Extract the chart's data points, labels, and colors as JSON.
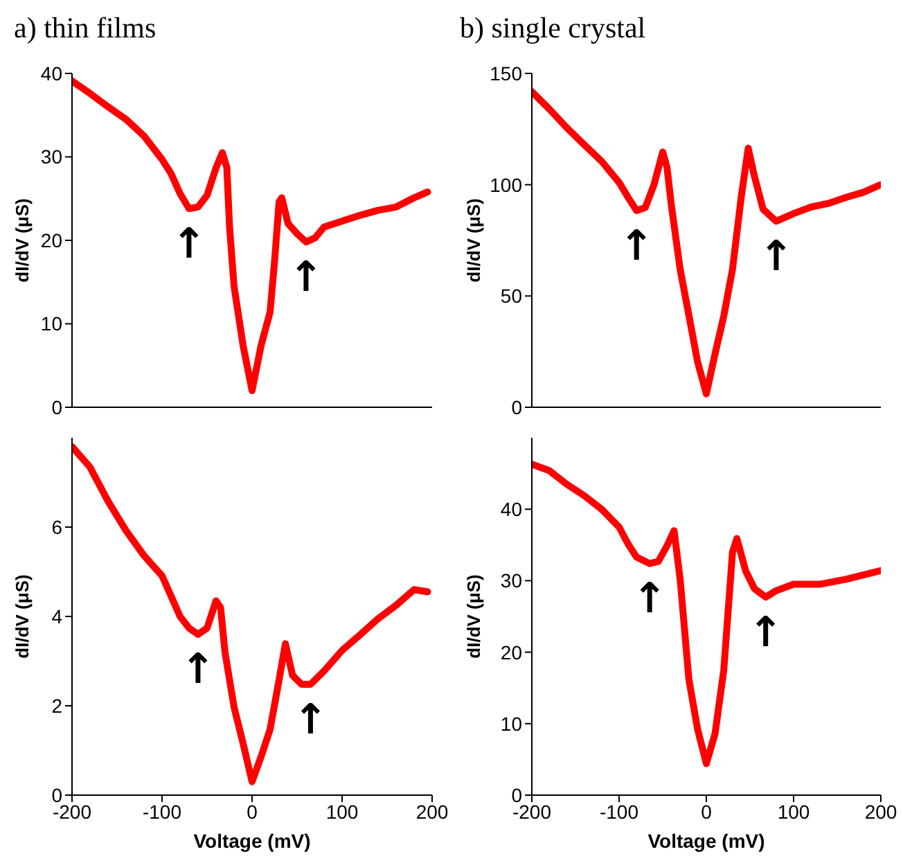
{
  "chart_data": [
    {
      "type": "line",
      "title": "a) thin films",
      "ylabel": "dI/dV (μS)",
      "xlim": [
        -200,
        200
      ],
      "xticks": [
        -200,
        -100,
        0,
        100,
        200
      ],
      "ylim": [
        0,
        40
      ],
      "yticks": [
        0,
        10,
        20,
        30,
        40
      ],
      "tick_labels": "y",
      "x": [
        -200,
        -180,
        -160,
        -140,
        -120,
        -100,
        -90,
        -80,
        -70,
        -60,
        -50,
        -40,
        -33,
        -28,
        -25,
        -20,
        -10,
        0,
        10,
        20,
        25,
        30,
        33,
        40,
        50,
        60,
        70,
        80,
        100,
        120,
        140,
        160,
        180,
        195
      ],
      "series": [
        {
          "color": "#ff0000",
          "values": [
            39.1,
            37.6,
            36,
            34.5,
            32.5,
            29.7,
            28,
            25.6,
            23.8,
            24,
            25.4,
            28.7,
            30.5,
            28.7,
            21.6,
            14.5,
            7.4,
            2.0,
            7.4,
            11.4,
            17.5,
            24.6,
            25.1,
            22,
            20.8,
            19.8,
            20.3,
            21.6,
            22.3,
            23,
            23.6,
            24,
            25.1,
            25.8
          ]
        }
      ],
      "annotations": [
        {
          "text": "↑",
          "x": -70,
          "y": 23.8
        },
        {
          "text": "↑",
          "x": 60,
          "y": 19.8
        }
      ]
    },
    {
      "type": "line",
      "title": "b) single crystal",
      "ylabel": "dI/dV (μS)",
      "xlim": [
        -200,
        200
      ],
      "xticks": [
        -200,
        -100,
        0,
        100,
        200
      ],
      "ylim": [
        0,
        150
      ],
      "yticks": [
        0,
        50,
        100,
        150
      ],
      "tick_labels": "y",
      "x": [
        -200,
        -180,
        -160,
        -140,
        -120,
        -100,
        -90,
        -80,
        -70,
        -60,
        -50,
        -45,
        -40,
        -30,
        -20,
        -10,
        0,
        10,
        20,
        30,
        40,
        48,
        55,
        65,
        80,
        100,
        120,
        140,
        160,
        180,
        200
      ],
      "series": [
        {
          "color": "#ff0000",
          "values": [
            141.8,
            134,
            125.6,
            118,
            110.5,
            101,
            94.5,
            88.4,
            89.7,
            100,
            114.7,
            107.6,
            90.5,
            62,
            41.3,
            20.4,
            6,
            24,
            41,
            62,
            94.5,
            116.4,
            104,
            89,
            83.6,
            87,
            90,
            91.6,
            94.3,
            96.6,
            100
          ]
        }
      ],
      "annotations": [
        {
          "text": "↑",
          "x": -80,
          "y": 88.4
        },
        {
          "text": "↑",
          "x": 80,
          "y": 83.6
        }
      ]
    },
    {
      "type": "line",
      "xlabel": "Voltage (mV)",
      "ylabel": "dI/dV (μS)",
      "xlim": [
        -200,
        200
      ],
      "xticks": [
        -200,
        -100,
        0,
        100,
        200
      ],
      "ylim": [
        0,
        8
      ],
      "yticks": [
        0,
        2,
        4,
        6
      ],
      "x": [
        -200,
        -180,
        -160,
        -140,
        -120,
        -100,
        -80,
        -70,
        -60,
        -50,
        -40,
        -35,
        -30,
        -20,
        -10,
        0,
        10,
        20,
        30,
        37,
        45,
        55,
        65,
        80,
        100,
        120,
        140,
        160,
        180,
        195
      ],
      "series": [
        {
          "color": "#ff0000",
          "values": [
            7.8,
            7.34,
            6.58,
            5.92,
            5.36,
            4.91,
            4.0,
            3.74,
            3.6,
            3.74,
            4.35,
            4.2,
            3.19,
            1.97,
            1.16,
            0.3,
            0.86,
            1.47,
            2.58,
            3.39,
            2.68,
            2.48,
            2.48,
            2.78,
            3.24,
            3.59,
            3.95,
            4.25,
            4.6,
            4.55
          ]
        }
      ],
      "annotations": [
        {
          "text": "↑",
          "x": -60,
          "y": 3.6
        },
        {
          "text": "↑",
          "x": 65,
          "y": 2.48
        }
      ]
    },
    {
      "type": "line",
      "xlabel": "Voltage (mV)",
      "ylabel": "dI/dV (μS)",
      "xlim": [
        -200,
        200
      ],
      "xticks": [
        -200,
        -100,
        0,
        100,
        200
      ],
      "ylim": [
        0,
        50
      ],
      "yticks": [
        0,
        10,
        20,
        30,
        40
      ],
      "x": [
        -200,
        -180,
        -160,
        -140,
        -120,
        -100,
        -90,
        -80,
        -65,
        -55,
        -45,
        -37,
        -30,
        -20,
        -10,
        0,
        10,
        20,
        30,
        35,
        45,
        55,
        68,
        80,
        100,
        130,
        160,
        200
      ],
      "series": [
        {
          "color": "#ff0000",
          "values": [
            46.3,
            45.4,
            43.5,
            41.9,
            40,
            37.5,
            35.2,
            33.3,
            32.4,
            32.7,
            34.9,
            37,
            30.2,
            16.2,
            9.2,
            4.4,
            8.6,
            17.5,
            34,
            35.9,
            31.4,
            28.9,
            27.7,
            28.6,
            29.5,
            29.5,
            30.2,
            31.4
          ]
        }
      ],
      "annotations": [
        {
          "text": "↑",
          "x": -65,
          "y": 32.4
        },
        {
          "text": "↑",
          "x": 68,
          "y": 27.7
        }
      ]
    }
  ]
}
